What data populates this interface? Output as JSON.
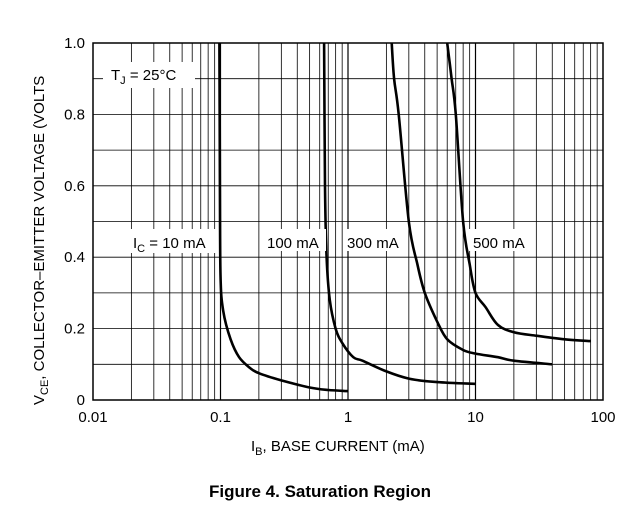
{
  "chart_data": {
    "type": "line",
    "title": "",
    "caption": "Figure 4. Saturation Region",
    "xlabel": {
      "main": "I",
      "sub": "B",
      "rest": ", BASE CURRENT (mA)"
    },
    "ylabel": {
      "main": "V",
      "sub": "CE",
      "rest": ", COLLECTOR–EMITTER VOLTAGE (VOLTS"
    },
    "x_scale": "log",
    "xlim": [
      0.01,
      100
    ],
    "ylim": [
      0,
      1.0
    ],
    "x_ticks": [
      {
        "v": 0.01,
        "label": "0.01"
      },
      {
        "v": 0.1,
        "label": "0.1"
      },
      {
        "v": 1,
        "label": "1"
      },
      {
        "v": 10,
        "label": "10"
      },
      {
        "v": 100,
        "label": "100"
      }
    ],
    "y_ticks": [
      {
        "v": 0,
        "label": "0"
      },
      {
        "v": 0.2,
        "label": "0.2"
      },
      {
        "v": 0.4,
        "label": "0.4"
      },
      {
        "v": 0.6,
        "label": "0.6"
      },
      {
        "v": 0.8,
        "label": "0.8"
      },
      {
        "v": 1.0,
        "label": "1.0"
      }
    ],
    "grid": true,
    "condition": {
      "main": "T",
      "sub": "J",
      "rest": " = 25°C"
    },
    "series": [
      {
        "label": {
          "main": "I",
          "sub": "C",
          "rest": " = 10 mA"
        },
        "points": [
          [
            0.098,
            1.0
          ],
          [
            0.099,
            0.6
          ],
          [
            0.1,
            0.35
          ],
          [
            0.105,
            0.25
          ],
          [
            0.12,
            0.17
          ],
          [
            0.14,
            0.12
          ],
          [
            0.17,
            0.09
          ],
          [
            0.2,
            0.075
          ],
          [
            0.3,
            0.055
          ],
          [
            0.5,
            0.035
          ],
          [
            0.7,
            0.028
          ],
          [
            1.0,
            0.025
          ]
        ]
      },
      {
        "label": {
          "main": "",
          "sub": "",
          "rest": "100 mA"
        },
        "points": [
          [
            0.65,
            1.0
          ],
          [
            0.66,
            0.6
          ],
          [
            0.68,
            0.4
          ],
          [
            0.72,
            0.28
          ],
          [
            0.8,
            0.2
          ],
          [
            0.9,
            0.16
          ],
          [
            1.1,
            0.12
          ],
          [
            1.3,
            0.11
          ],
          [
            2.0,
            0.08
          ],
          [
            3.0,
            0.06
          ],
          [
            5.0,
            0.05
          ],
          [
            10.0,
            0.045
          ]
        ]
      },
      {
        "label": {
          "main": "",
          "sub": "",
          "rest": "300 mA"
        },
        "points": [
          [
            2.2,
            1.0
          ],
          [
            2.3,
            0.9
          ],
          [
            2.5,
            0.8
          ],
          [
            3.0,
            0.5
          ],
          [
            3.5,
            0.38
          ],
          [
            4.0,
            0.3
          ],
          [
            5.0,
            0.22
          ],
          [
            6.0,
            0.17
          ],
          [
            8.0,
            0.14
          ],
          [
            10.0,
            0.13
          ],
          [
            15.0,
            0.12
          ],
          [
            20.0,
            0.11
          ],
          [
            40.0,
            0.1
          ]
        ]
      },
      {
        "label": {
          "main": "",
          "sub": "",
          "rest": "500 mA"
        },
        "points": [
          [
            6.0,
            1.0
          ],
          [
            6.5,
            0.9
          ],
          [
            7.0,
            0.8
          ],
          [
            8.0,
            0.5
          ],
          [
            9.0,
            0.38
          ],
          [
            10.0,
            0.3
          ],
          [
            12.0,
            0.26
          ],
          [
            15.0,
            0.21
          ],
          [
            20.0,
            0.19
          ],
          [
            30.0,
            0.18
          ],
          [
            50.0,
            0.17
          ],
          [
            80.0,
            0.165
          ]
        ]
      }
    ]
  }
}
